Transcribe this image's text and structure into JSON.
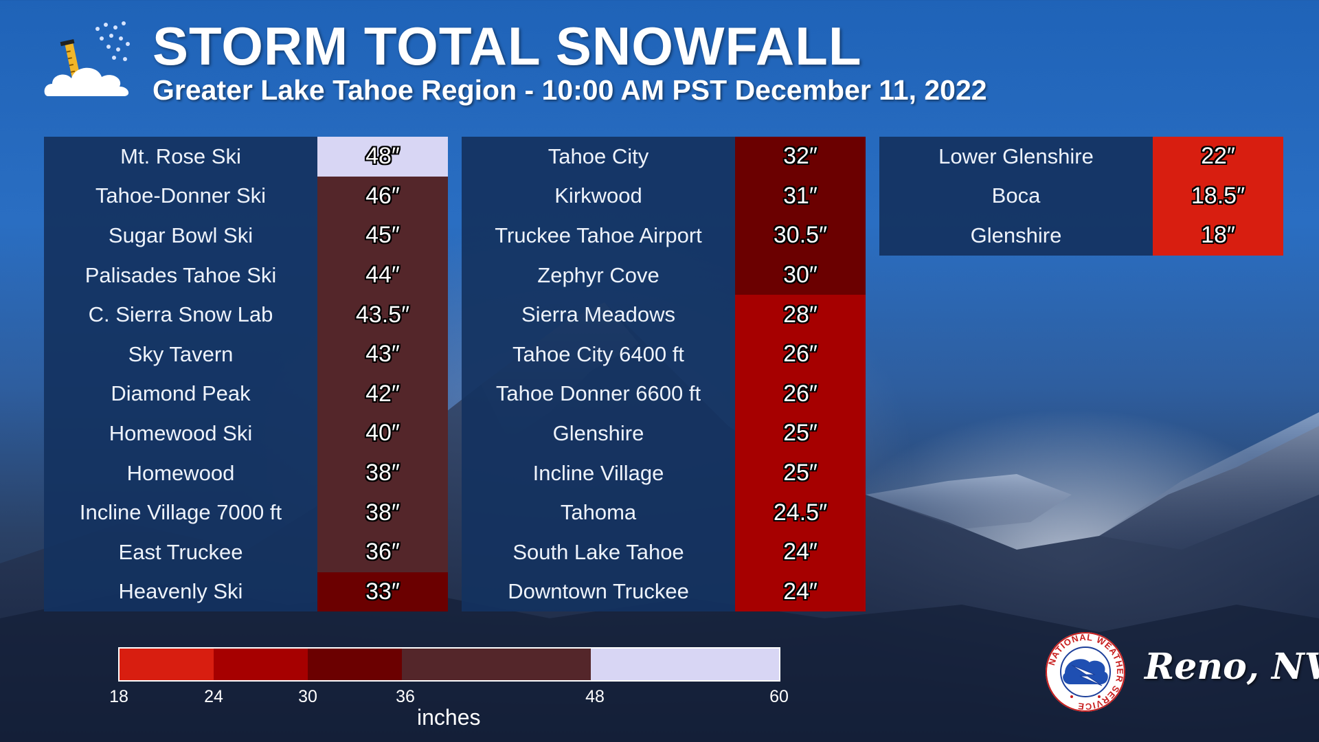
{
  "title": "STORM TOTAL SNOWFALL",
  "subtitle": "Greater Lake Tahoe Region - 10:00 AM PST December 11, 2022",
  "icon": "snow-cloud-ruler-icon",
  "colors": {
    "18-24": "#d81e10",
    "24-30": "#a60000",
    "30-36": "#6b0000",
    "36-48": "#54262a",
    "48-60": "#d8d6f4",
    "name_cell": "#14325f"
  },
  "columns": [
    [
      {
        "name": "Mt. Rose Ski",
        "value": "48″",
        "color": "#d8d6f4"
      },
      {
        "name": "Tahoe-Donner Ski",
        "value": "46″",
        "color": "#54262a"
      },
      {
        "name": "Sugar Bowl Ski",
        "value": "45″",
        "color": "#54262a"
      },
      {
        "name": "Palisades Tahoe Ski",
        "value": "44″",
        "color": "#54262a"
      },
      {
        "name": "C. Sierra Snow Lab",
        "value": "43.5″",
        "color": "#54262a"
      },
      {
        "name": "Sky Tavern",
        "value": "43″",
        "color": "#54262a"
      },
      {
        "name": "Diamond Peak",
        "value": "42″",
        "color": "#54262a"
      },
      {
        "name": "Homewood Ski",
        "value": "40″",
        "color": "#54262a"
      },
      {
        "name": "Homewood",
        "value": "38″",
        "color": "#54262a"
      },
      {
        "name": "Incline Village 7000 ft",
        "value": "38″",
        "color": "#54262a"
      },
      {
        "name": "East Truckee",
        "value": "36″",
        "color": "#54262a"
      },
      {
        "name": "Heavenly Ski",
        "value": "33″",
        "color": "#6b0000"
      }
    ],
    [
      {
        "name": "Tahoe City",
        "value": "32″",
        "color": "#6b0000"
      },
      {
        "name": "Kirkwood",
        "value": "31″",
        "color": "#6b0000"
      },
      {
        "name": "Truckee Tahoe Airport",
        "value": "30.5″",
        "color": "#6b0000"
      },
      {
        "name": "Zephyr Cove",
        "value": "30″",
        "color": "#6b0000"
      },
      {
        "name": "Sierra Meadows",
        "value": "28″",
        "color": "#a60000"
      },
      {
        "name": "Tahoe City 6400 ft",
        "value": "26″",
        "color": "#a60000"
      },
      {
        "name": "Tahoe Donner 6600 ft",
        "value": "26″",
        "color": "#a60000"
      },
      {
        "name": "Glenshire",
        "value": "25″",
        "color": "#a60000"
      },
      {
        "name": "Incline Village",
        "value": "25″",
        "color": "#a60000"
      },
      {
        "name": "Tahoma",
        "value": "24.5″",
        "color": "#a60000"
      },
      {
        "name": "South Lake Tahoe",
        "value": "24″",
        "color": "#a60000"
      },
      {
        "name": "Downtown Truckee",
        "value": "24″",
        "color": "#a60000"
      }
    ],
    [
      {
        "name": "Lower Glenshire",
        "value": "22″",
        "color": "#d81e10"
      },
      {
        "name": "Boca",
        "value": "18.5″",
        "color": "#d81e10"
      },
      {
        "name": "Glenshire",
        "value": "18″",
        "color": "#d81e10"
      }
    ]
  ],
  "legend": {
    "ticks": [
      "18",
      "24",
      "30",
      "36",
      "48",
      "60"
    ],
    "units": "inches",
    "bins": [
      {
        "from": 18,
        "to": 24,
        "color": "#d81e10"
      },
      {
        "from": 24,
        "to": 30,
        "color": "#a60000"
      },
      {
        "from": 30,
        "to": 36,
        "color": "#6b0000"
      },
      {
        "from": 36,
        "to": 48,
        "color": "#54262a"
      },
      {
        "from": 48,
        "to": 60,
        "color": "#d8d6f4"
      }
    ]
  },
  "logo": {
    "icon": "nws-logo-icon",
    "ring_text": "NATIONAL WEATHER SERVICE"
  },
  "office": "Reno, NV"
}
